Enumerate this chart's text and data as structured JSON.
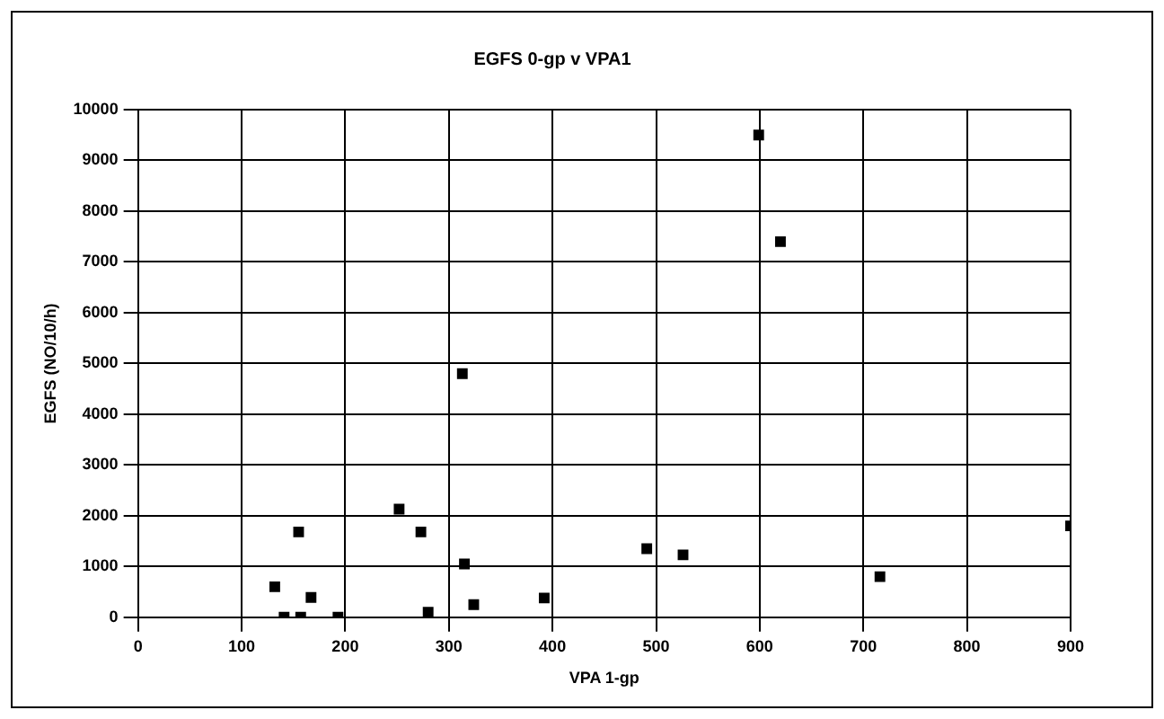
{
  "chart_data": {
    "type": "scatter",
    "title": "EGFS 0-gp v VPA1",
    "xlabel": "VPA 1-gp",
    "ylabel": "EGFS (NO/10/h)",
    "x": [
      132,
      141,
      155,
      157,
      167,
      193,
      252,
      273,
      280,
      313,
      315,
      324,
      392,
      491,
      526,
      599,
      620,
      716,
      900
    ],
    "values": [
      600,
      0,
      1680,
      0,
      390,
      0,
      2130,
      1680,
      100,
      4800,
      1050,
      250,
      380,
      1350,
      1230,
      9500,
      7400,
      800,
      1800
    ],
    "color": "#000000",
    "marker": "square",
    "xlim": [
      0,
      900
    ],
    "xticks": [
      0,
      100,
      200,
      300,
      400,
      500,
      600,
      700,
      800,
      900
    ],
    "ylim": [
      0,
      10000
    ],
    "yticks": [
      0,
      1000,
      2000,
      3000,
      4000,
      5000,
      6000,
      7000,
      8000,
      9000,
      10000
    ],
    "grid": true,
    "legend": false
  }
}
